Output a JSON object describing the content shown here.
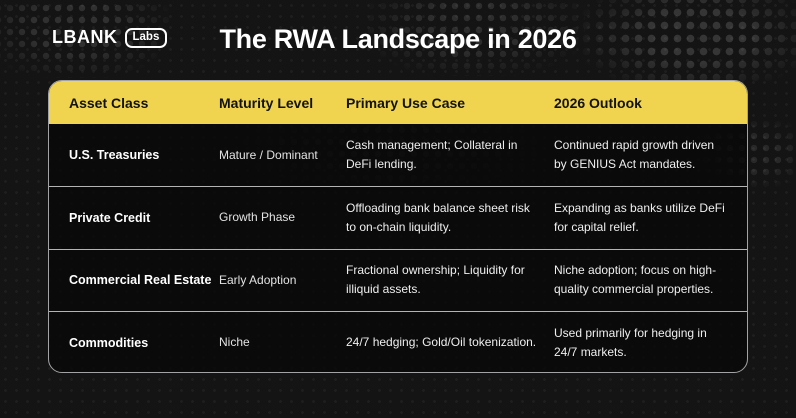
{
  "logo": {
    "brand": "LBANK",
    "badge": "Labs"
  },
  "title": "The RWA Landscape in 2026",
  "chart_data": {
    "type": "table",
    "title": "The RWA Landscape in 2026",
    "columns": [
      "Asset Class",
      "Maturity Level",
      "Primary Use Case",
      "2026 Outlook"
    ],
    "rows": [
      {
        "asset_class": "U.S. Treasuries",
        "maturity_level": "Mature / Dominant",
        "use_case": "Cash management; Collateral in DeFi lending.",
        "outlook": "Continued rapid growth driven by GENIUS Act mandates."
      },
      {
        "asset_class": "Private Credit",
        "maturity_level": "Growth Phase",
        "use_case": "Offloading bank balance sheet risk to on-chain liquidity.",
        "outlook": "Expanding as banks utilize DeFi for capital relief."
      },
      {
        "asset_class": "Commercial Real Estate",
        "maturity_level": "Early Adoption",
        "use_case": "Fractional ownership; Liquidity for illiquid assets.",
        "outlook": "Niche adoption; focus on high-quality commercial properties."
      },
      {
        "asset_class": "Commodities",
        "maturity_level": "Niche",
        "use_case": "24/7 hedging; Gold/Oil tokenization.",
        "outlook": "Used primarily for hedging in 24/7 markets."
      }
    ]
  },
  "colors": {
    "accent_yellow": "#F0D44F",
    "background": "#141414",
    "table_background": "#0B0B0B",
    "table_border": "#A3A3A6",
    "header_text": "#121212",
    "body_text": "#EFEFEF"
  }
}
